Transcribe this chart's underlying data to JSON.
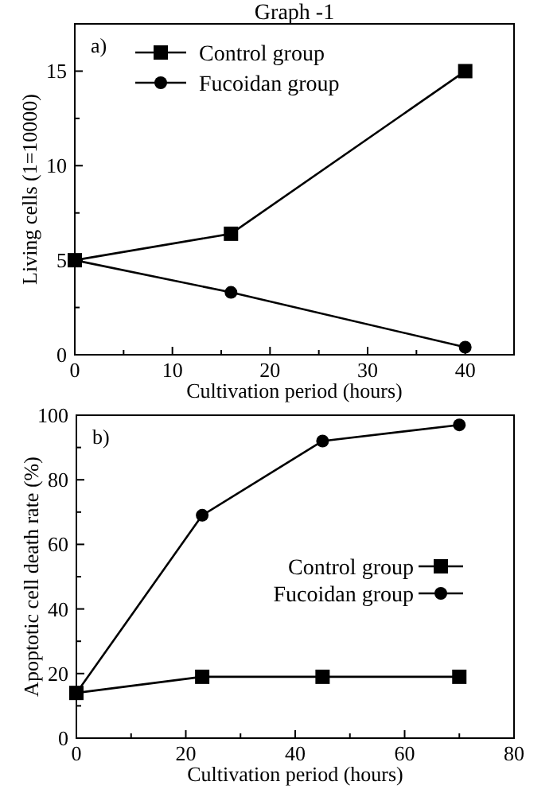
{
  "chart_data": [
    {
      "type": "line",
      "title": "Graph -1",
      "xlabel": "Cultivation period (hours)",
      "ylabel": "Living cells (1=10000)",
      "annotations": [
        "a)"
      ],
      "xlim": [
        0,
        45
      ],
      "ylim": [
        0,
        17.5
      ],
      "xticks": [
        0,
        {
          "value": 5,
          "label": null
        },
        10,
        {
          "value": 15,
          "label": null
        },
        20,
        {
          "value": 25,
          "label": null
        },
        30,
        {
          "value": 35,
          "label": null
        },
        40
      ],
      "yticks": [
        0,
        {
          "value": 2.5,
          "label": null
        },
        5,
        {
          "value": 7.5,
          "label": null
        },
        10,
        {
          "value": 12.5,
          "label": null
        },
        15
      ],
      "legend": "top left",
      "grid": false,
      "x": [
        0,
        16,
        40
      ],
      "series": [
        {
          "name": "Control group",
          "color": "#000000",
          "marker": "square",
          "values": [
            5,
            6.4,
            15
          ]
        },
        {
          "name": "Fucoidan group",
          "color": "#000000",
          "marker": "circle",
          "values": [
            5,
            3.3,
            0.4
          ]
        }
      ]
    },
    {
      "type": "line",
      "xlabel": "Cultivation period (hours)",
      "ylabel": "Apoptotic cell death rate (%)",
      "annotations": [
        "b)"
      ],
      "xlim": [
        0,
        80
      ],
      "ylim": [
        0,
        100
      ],
      "xticks": [
        0,
        {
          "value": 10,
          "label": null
        },
        20,
        {
          "value": 30,
          "label": null
        },
        40,
        {
          "value": 50,
          "label": null
        },
        60,
        {
          "value": 70,
          "label": null
        },
        80
      ],
      "yticks": [
        0,
        {
          "value": 10,
          "label": null
        },
        20,
        {
          "value": 30,
          "label": null
        },
        40,
        {
          "value": 50,
          "label": null
        },
        60,
        {
          "value": 70,
          "label": null
        },
        80,
        {
          "value": 90,
          "label": null
        },
        100
      ],
      "legend": "right",
      "grid": false,
      "x": [
        0,
        23,
        45,
        70
      ],
      "series": [
        {
          "name": "Control group",
          "color": "#000000",
          "marker": "square",
          "values": [
            14,
            19,
            19,
            19
          ]
        },
        {
          "name": "Fucoidan group",
          "color": "#000000",
          "marker": "circle",
          "values": [
            14,
            69,
            92,
            97
          ]
        }
      ]
    }
  ]
}
